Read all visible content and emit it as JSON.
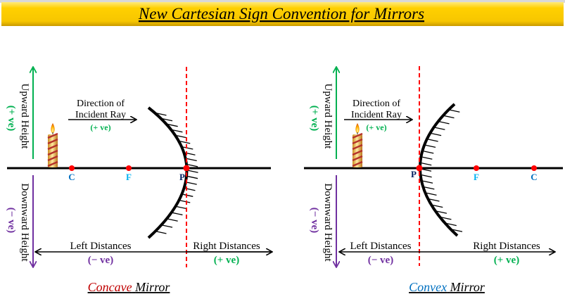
{
  "title": "New Cartesian Sign Convention for Mirrors",
  "colors": {
    "title_bg": "#FFD000",
    "axis": "#000000",
    "positive": "#00B050",
    "negative": "#7030A0",
    "point": "#FF0000",
    "label_c": "#0070C0",
    "label_f": "#00B0F0",
    "label_p": "#002060",
    "concave_word": "#C00000",
    "convex_word": "#0070C0"
  },
  "panels": [
    {
      "upward_label": "Upward Height",
      "upward_sign": "(+ ve)",
      "downward_label": "Downward Height",
      "downward_sign": "(− ve)",
      "incident_line1": "Direction of",
      "incident_line2": "Incident Ray",
      "incident_sign": "(+ ve)",
      "points": {
        "c": "C",
        "f": "F",
        "p": "P"
      },
      "left_distances": "Left Distances",
      "left_sign": "(− ve)",
      "right_distances": "Right Distances",
      "right_sign": "(+ ve)",
      "caption_type": "Concave",
      "caption_word": "Mirror"
    },
    {
      "upward_label": "Upward Height",
      "upward_sign": "(+ ve)",
      "downward_label": "Downward Height",
      "downward_sign": "(− ve)",
      "incident_line1": "Direction of",
      "incident_line2": "Incident Ray",
      "incident_sign": "(+ ve)",
      "points": {
        "c": "C",
        "f": "F",
        "p": "P"
      },
      "left_distances": "Left Distances",
      "left_sign": "(− ve)",
      "right_distances": "Right Distances",
      "right_sign": "(+ ve)",
      "caption_type": "Convex",
      "caption_word": "Mirror"
    }
  ]
}
